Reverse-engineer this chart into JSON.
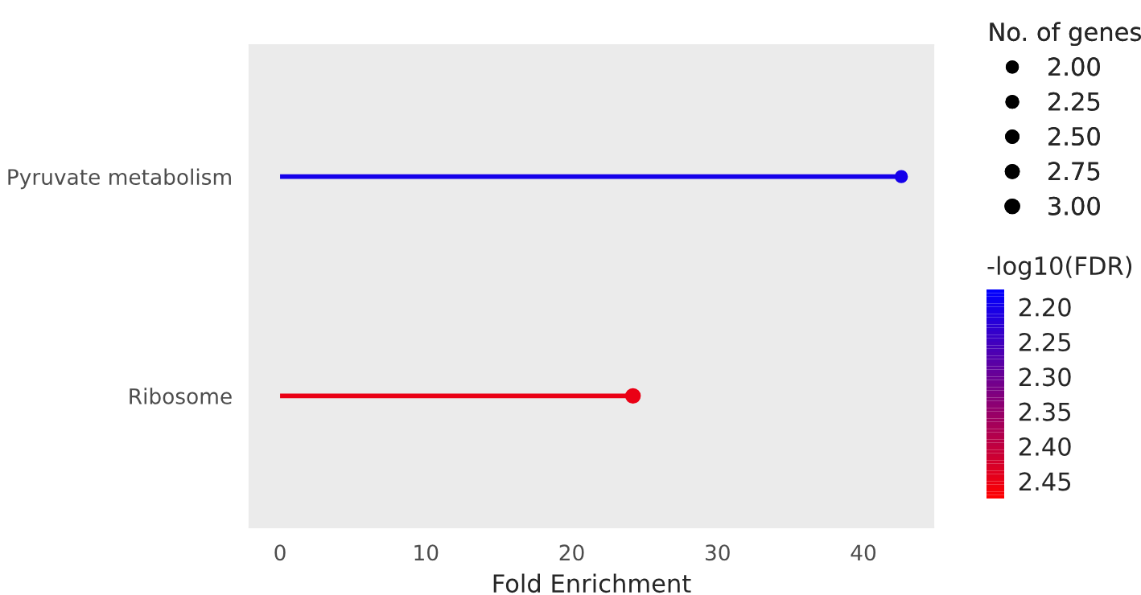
{
  "chart_data": {
    "type": "lollipop",
    "orientation": "horizontal",
    "xlabel": "Fold Enrichment",
    "categories": [
      "Pyruvate metabolism",
      "Ribosome"
    ],
    "values": [
      42.6,
      24.2
    ],
    "sizes": [
      2,
      3
    ],
    "cvalues": [
      2.2,
      2.45
    ],
    "legend_title": "No. of genes",
    "size_legend": [
      {
        "value": 2,
        "label": "2.00"
      },
      {
        "value": 2.25,
        "label": "2.25"
      },
      {
        "value": 2.5,
        "label": "2.50"
      },
      {
        "value": 2.75,
        "label": "2.75"
      },
      {
        "value": 3,
        "label": "3.00"
      }
    ],
    "clabel": "-log10(FDR)",
    "clim": [
      2.175,
      2.475
    ],
    "cticks": [
      {
        "value": 2.2,
        "label": "2.20"
      },
      {
        "value": 2.25,
        "label": "2.25"
      },
      {
        "value": 2.3,
        "label": "2.30"
      },
      {
        "value": 2.35,
        "label": "2.35"
      },
      {
        "value": 2.4,
        "label": "2.40"
      },
      {
        "value": 2.45,
        "label": "2.45"
      }
    ],
    "xlim": [
      -2.1,
      44.8
    ],
    "xticks": [
      0,
      10,
      20,
      30,
      40
    ],
    "grid": false,
    "marker": "circle"
  }
}
